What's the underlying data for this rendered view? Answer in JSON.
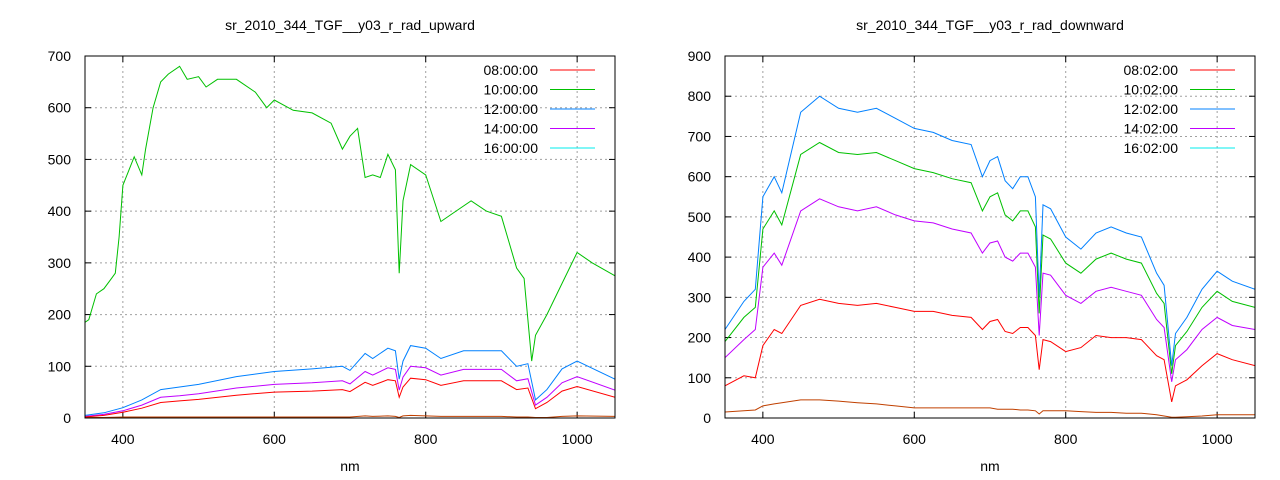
{
  "chart_data": [
    {
      "type": "line",
      "title": "sr_2010_344_TGF__y03_r_rad_upward",
      "xlabel": "nm",
      "ylabel": "",
      "xlim": [
        350,
        1050
      ],
      "ylim": [
        0,
        700
      ],
      "xticks": [
        400,
        600,
        800,
        1000
      ],
      "yticks": [
        0,
        100,
        200,
        300,
        400,
        500,
        600,
        700
      ],
      "grid": true,
      "legend_position": "top-right",
      "series": [
        {
          "name": "08:00:00",
          "legend_color": "#ff0000",
          "color": "#ff0000",
          "x": [
            350,
            375,
            400,
            425,
            450,
            475,
            500,
            550,
            600,
            650,
            690,
            700,
            720,
            730,
            750,
            760,
            765,
            770,
            780,
            800,
            820,
            850,
            900,
            920,
            935,
            945,
            960,
            980,
            1000,
            1050
          ],
          "y": [
            2,
            5,
            11,
            19,
            30,
            33,
            36,
            44,
            50,
            52,
            55,
            51,
            69,
            63,
            74,
            72,
            40,
            60,
            77,
            74,
            63,
            72,
            72,
            55,
            58,
            18,
            30,
            52,
            61,
            40
          ]
        },
        {
          "name": "10:00:00",
          "legend_color": "#00c000",
          "color": "#00c000",
          "x": [
            350,
            355,
            365,
            375,
            385,
            390,
            395,
            400,
            415,
            425,
            430,
            440,
            450,
            460,
            475,
            485,
            500,
            510,
            525,
            550,
            575,
            590,
            600,
            625,
            650,
            675,
            690,
            700,
            710,
            720,
            730,
            740,
            750,
            760,
            765,
            770,
            780,
            800,
            820,
            840,
            860,
            880,
            900,
            920,
            930,
            940,
            945,
            960,
            980,
            1000,
            1020,
            1050
          ],
          "y": [
            185,
            190,
            240,
            250,
            270,
            280,
            350,
            450,
            505,
            470,
            520,
            600,
            650,
            665,
            680,
            655,
            660,
            640,
            655,
            655,
            630,
            600,
            615,
            595,
            590,
            570,
            520,
            545,
            560,
            465,
            470,
            465,
            510,
            480,
            280,
            420,
            490,
            470,
            380,
            400,
            420,
            400,
            390,
            290,
            270,
            110,
            160,
            200,
            260,
            320,
            300,
            275
          ]
        },
        {
          "name": "12:00:00",
          "legend_color": "#0080ff",
          "color": "#0080ff",
          "x": [
            350,
            375,
            400,
            425,
            450,
            475,
            500,
            550,
            600,
            650,
            690,
            700,
            720,
            730,
            750,
            760,
            765,
            770,
            780,
            800,
            820,
            850,
            900,
            920,
            935,
            945,
            960,
            980,
            1000,
            1050
          ],
          "y": [
            5,
            10,
            20,
            35,
            55,
            60,
            65,
            80,
            90,
            95,
            100,
            92,
            125,
            115,
            135,
            130,
            75,
            110,
            140,
            135,
            115,
            130,
            130,
            100,
            105,
            35,
            55,
            95,
            110,
            75
          ]
        },
        {
          "name": "14:00:00",
          "legend_color": "#c000ff",
          "color": "#c000ff",
          "x": [
            350,
            375,
            400,
            425,
            450,
            475,
            500,
            550,
            600,
            650,
            690,
            700,
            720,
            730,
            750,
            760,
            765,
            770,
            780,
            800,
            820,
            850,
            900,
            920,
            935,
            945,
            960,
            980,
            1000,
            1050
          ],
          "y": [
            3,
            7,
            14,
            25,
            40,
            43,
            47,
            58,
            65,
            68,
            72,
            66,
            90,
            83,
            97,
            94,
            54,
            79,
            100,
            97,
            83,
            94,
            94,
            72,
            76,
            25,
            40,
            68,
            80,
            54
          ]
        },
        {
          "name": "16:00:00",
          "legend_color": "#00eeee",
          "color": "#c04000",
          "x": [
            350,
            375,
            400,
            425,
            450,
            475,
            500,
            550,
            600,
            650,
            690,
            700,
            720,
            730,
            750,
            760,
            765,
            770,
            780,
            800,
            820,
            850,
            900,
            920,
            935,
            945,
            960,
            980,
            1000,
            1050
          ],
          "y": [
            1,
            1,
            2,
            2,
            2,
            2,
            2,
            2,
            2,
            2,
            2,
            2,
            4,
            3,
            4,
            3,
            1,
            4,
            5,
            4,
            3,
            3,
            3,
            2,
            2,
            1,
            1,
            3,
            4,
            3
          ]
        }
      ]
    },
    {
      "type": "line",
      "title": "sr_2010_344_TGF__y03_r_rad_downward",
      "xlabel": "nm",
      "ylabel": "",
      "xlim": [
        350,
        1050
      ],
      "ylim": [
        0,
        900
      ],
      "xticks": [
        400,
        600,
        800,
        1000
      ],
      "yticks": [
        0,
        100,
        200,
        300,
        400,
        500,
        600,
        700,
        800,
        900
      ],
      "grid": true,
      "legend_position": "top-right",
      "series": [
        {
          "name": "08:02:00",
          "legend_color": "#ff0000",
          "color": "#ff0000",
          "x": [
            350,
            375,
            390,
            400,
            415,
            425,
            450,
            475,
            500,
            525,
            550,
            575,
            600,
            625,
            650,
            675,
            690,
            700,
            710,
            720,
            730,
            740,
            750,
            760,
            765,
            770,
            780,
            800,
            820,
            840,
            860,
            880,
            900,
            920,
            930,
            940,
            945,
            960,
            980,
            1000,
            1020,
            1050
          ],
          "y": [
            80,
            105,
            100,
            180,
            220,
            210,
            280,
            295,
            285,
            280,
            285,
            275,
            265,
            265,
            255,
            250,
            220,
            240,
            245,
            215,
            210,
            225,
            225,
            205,
            120,
            195,
            190,
            165,
            175,
            205,
            200,
            200,
            195,
            155,
            145,
            40,
            80,
            95,
            130,
            160,
            145,
            130
          ]
        },
        {
          "name": "10:02:00",
          "legend_color": "#00c000",
          "color": "#00c000",
          "x": [
            350,
            375,
            390,
            400,
            415,
            425,
            450,
            475,
            500,
            525,
            550,
            575,
            600,
            625,
            650,
            675,
            690,
            700,
            710,
            720,
            730,
            740,
            750,
            760,
            765,
            770,
            780,
            800,
            820,
            840,
            860,
            880,
            900,
            920,
            930,
            940,
            945,
            960,
            980,
            1000,
            1020,
            1050
          ],
          "y": [
            190,
            250,
            275,
            470,
            515,
            480,
            655,
            685,
            660,
            655,
            660,
            640,
            620,
            610,
            595,
            585,
            515,
            550,
            560,
            505,
            490,
            515,
            515,
            475,
            260,
            455,
            445,
            385,
            360,
            395,
            410,
            395,
            385,
            310,
            285,
            110,
            180,
            215,
            275,
            315,
            290,
            275
          ]
        },
        {
          "name": "12:02:00",
          "legend_color": "#0080ff",
          "color": "#0080ff",
          "x": [
            350,
            375,
            390,
            400,
            415,
            425,
            450,
            475,
            500,
            525,
            550,
            575,
            600,
            625,
            650,
            675,
            690,
            700,
            710,
            720,
            730,
            740,
            750,
            760,
            765,
            770,
            780,
            800,
            820,
            840,
            860,
            880,
            900,
            920,
            930,
            940,
            945,
            960,
            980,
            1000,
            1020,
            1050
          ],
          "y": [
            220,
            290,
            320,
            550,
            600,
            560,
            760,
            800,
            770,
            760,
            770,
            745,
            720,
            710,
            690,
            680,
            600,
            640,
            650,
            590,
            570,
            600,
            600,
            550,
            300,
            530,
            520,
            450,
            420,
            460,
            475,
            460,
            450,
            360,
            330,
            130,
            210,
            250,
            320,
            365,
            340,
            320
          ]
        },
        {
          "name": "14:02:00",
          "legend_color": "#c000ff",
          "color": "#c000ff",
          "x": [
            350,
            375,
            390,
            400,
            415,
            425,
            450,
            475,
            500,
            525,
            550,
            575,
            600,
            625,
            650,
            675,
            690,
            700,
            710,
            720,
            730,
            740,
            750,
            760,
            765,
            770,
            780,
            800,
            820,
            840,
            860,
            880,
            900,
            920,
            930,
            940,
            945,
            960,
            980,
            1000,
            1020,
            1050
          ],
          "y": [
            150,
            195,
            220,
            375,
            410,
            380,
            515,
            545,
            525,
            515,
            525,
            505,
            490,
            485,
            470,
            460,
            410,
            435,
            440,
            400,
            390,
            410,
            410,
            375,
            205,
            360,
            355,
            305,
            285,
            315,
            325,
            315,
            305,
            245,
            225,
            90,
            145,
            170,
            220,
            250,
            230,
            220
          ]
        },
        {
          "name": "16:02:00",
          "legend_color": "#00eeee",
          "color": "#c04000",
          "x": [
            350,
            375,
            390,
            400,
            415,
            425,
            450,
            475,
            500,
            525,
            550,
            575,
            600,
            625,
            650,
            675,
            690,
            700,
            710,
            720,
            730,
            740,
            750,
            760,
            765,
            770,
            780,
            800,
            820,
            840,
            860,
            880,
            900,
            920,
            930,
            940,
            945,
            960,
            980,
            1000,
            1020,
            1050
          ],
          "y": [
            15,
            18,
            20,
            30,
            35,
            38,
            45,
            45,
            42,
            38,
            35,
            30,
            25,
            25,
            25,
            25,
            25,
            25,
            22,
            22,
            22,
            20,
            20,
            18,
            10,
            18,
            18,
            18,
            16,
            14,
            14,
            12,
            12,
            8,
            5,
            2,
            2,
            3,
            5,
            8,
            8,
            8
          ]
        }
      ]
    }
  ]
}
